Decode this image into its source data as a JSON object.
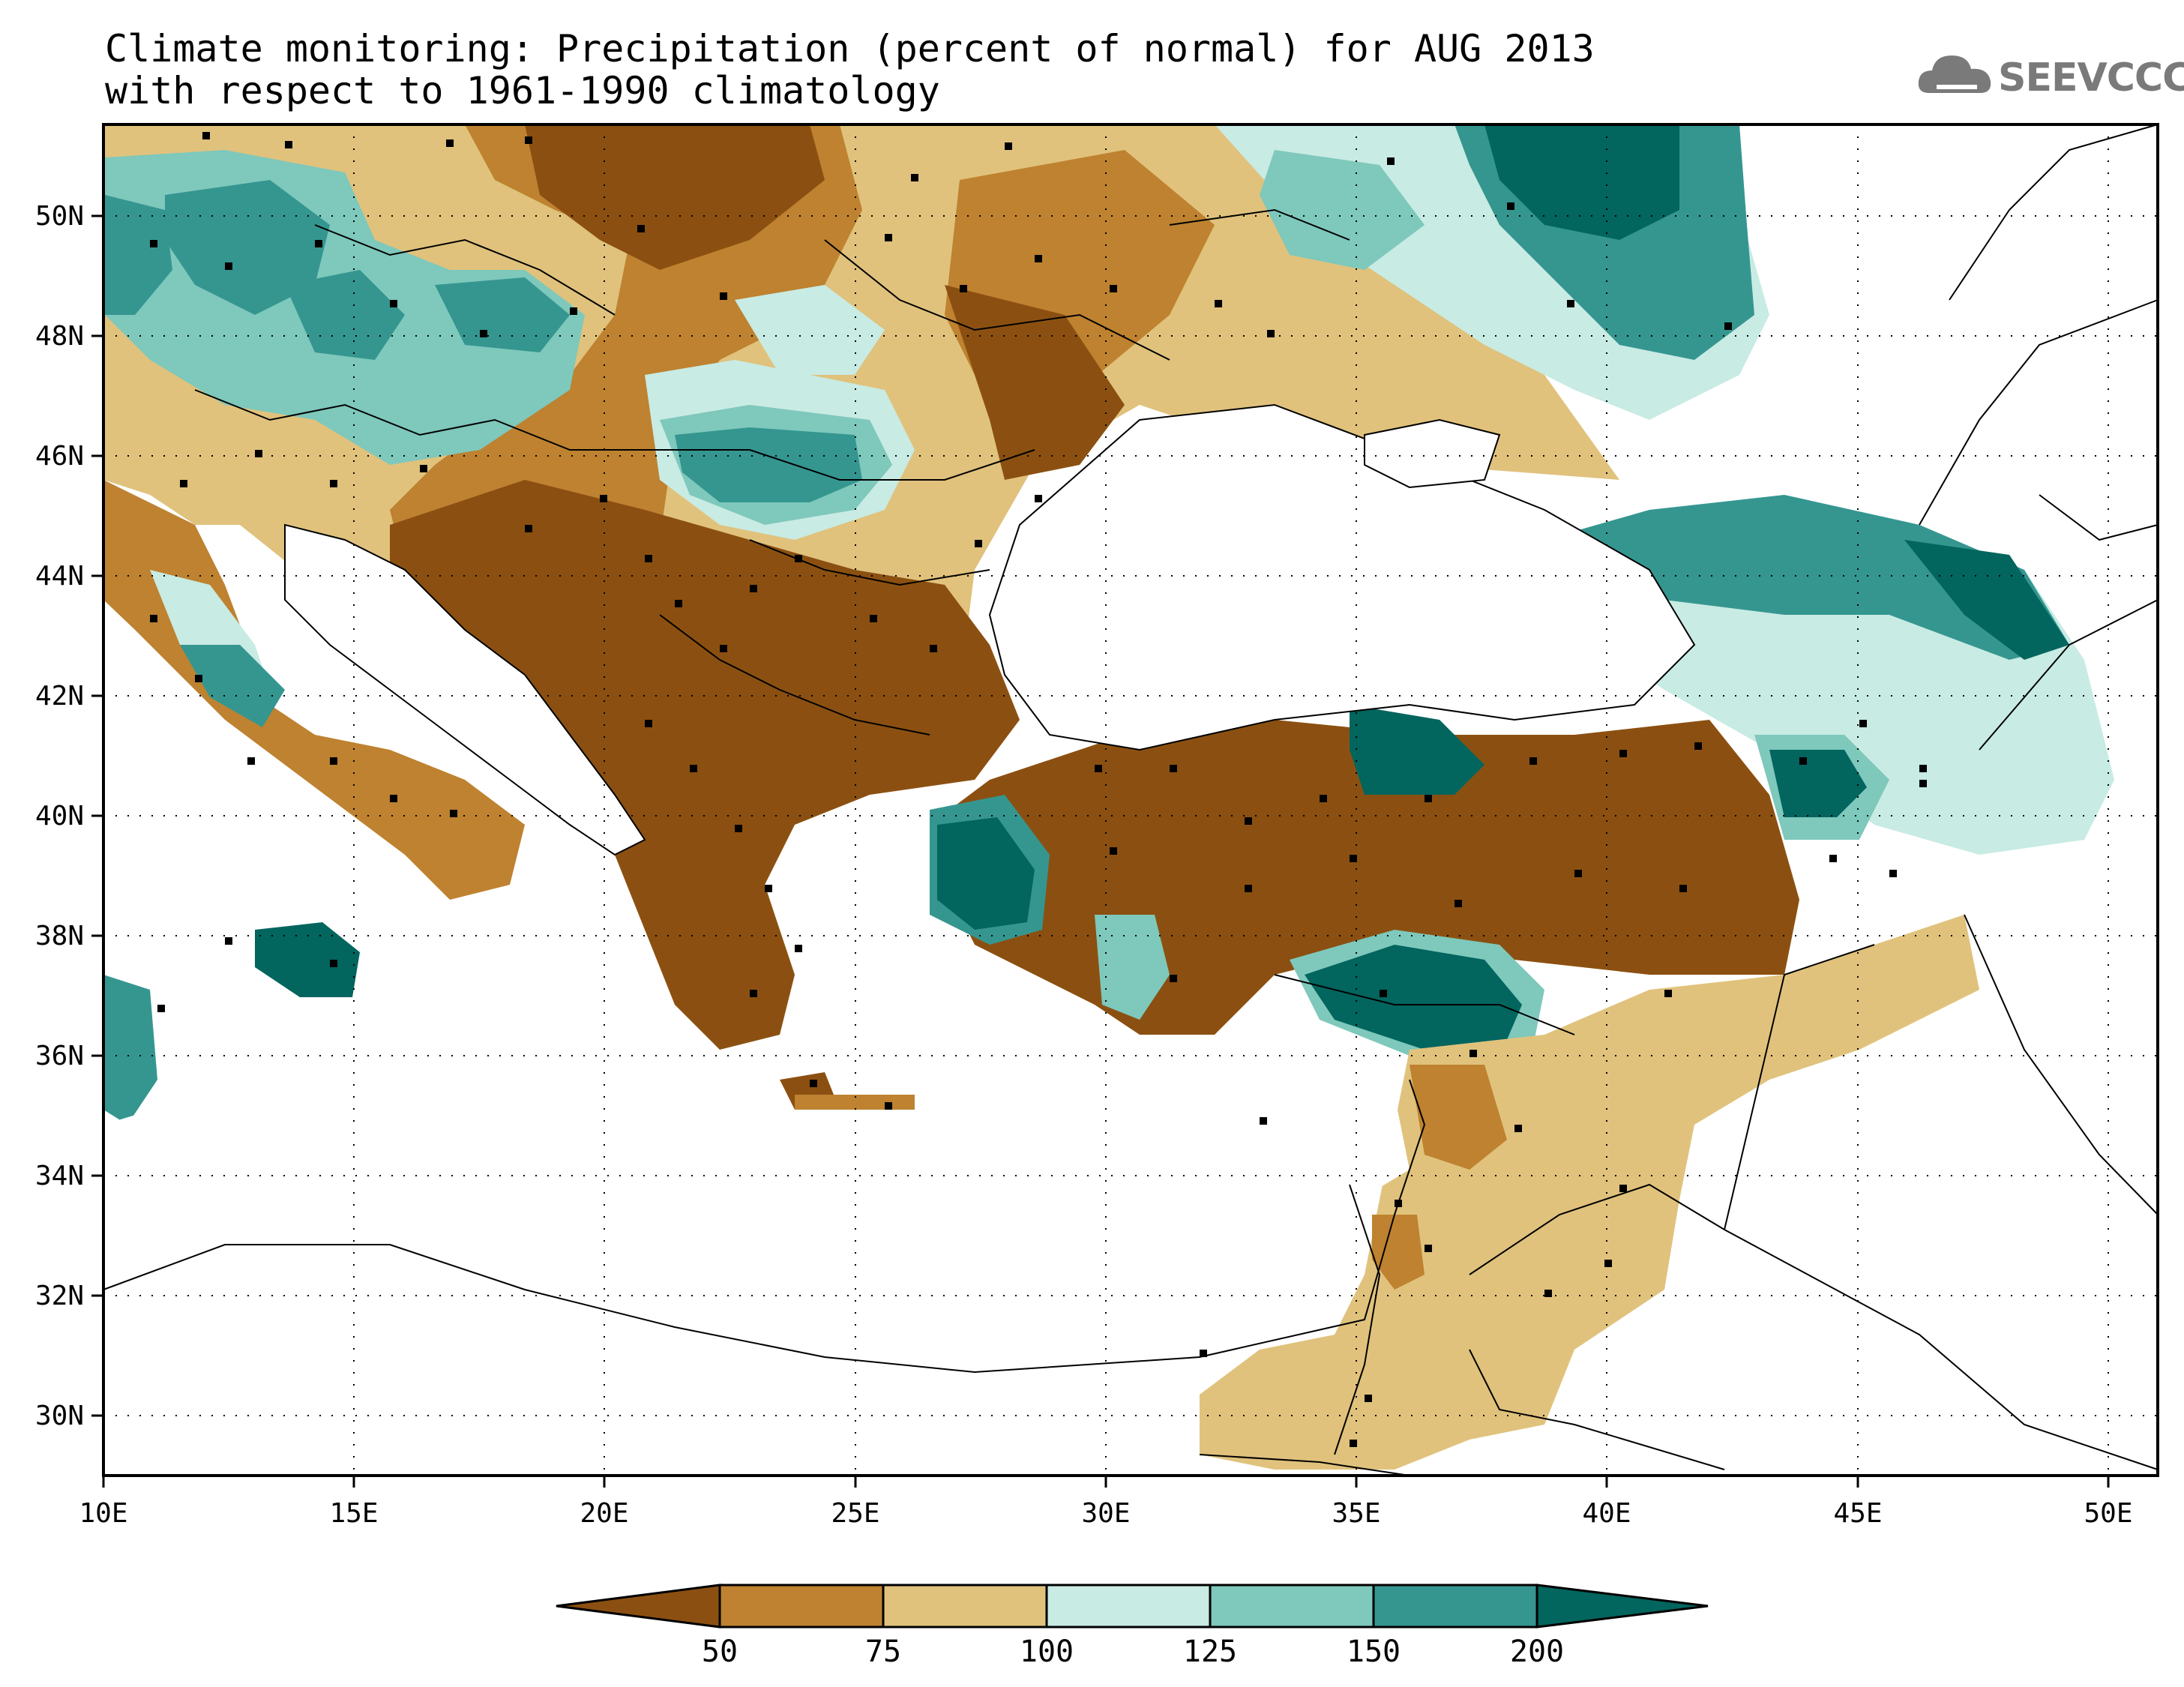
{
  "title_line1": "Climate monitoring: Precipitation (percent of normal) for AUG 2013",
  "title_line2": "with respect to 1961-1990 climatology",
  "logo": {
    "text": "SEEVCCC",
    "icon": "cloud-icon"
  },
  "map": {
    "lon_range": [
      10,
      51
    ],
    "lat_range": [
      29,
      51.5
    ],
    "lon_ticks": [
      "10E",
      "15E",
      "20E",
      "25E",
      "30E",
      "35E",
      "40E",
      "45E",
      "50E"
    ],
    "lat_ticks": [
      "30N",
      "32N",
      "34N",
      "36N",
      "38N",
      "40N",
      "42N",
      "44N",
      "46N",
      "48N",
      "50N"
    ],
    "gridlines": "dotted"
  },
  "legend": {
    "labels": [
      "50",
      "75",
      "100",
      "125",
      "150",
      "200"
    ],
    "colors": [
      "#8b5011",
      "#be8230",
      "#e0c27c",
      "#c8ebe3",
      "#7ec8bc",
      "#359690",
      "#02655e"
    ]
  }
}
